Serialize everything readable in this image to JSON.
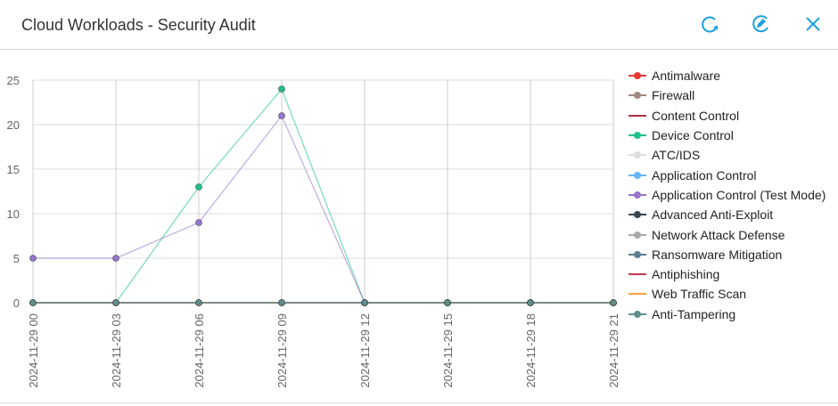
{
  "header": {
    "title": "Cloud Workloads - Security Audit",
    "icons": [
      "refresh-icon",
      "edit-icon",
      "close-icon"
    ],
    "accent": "#1a9fe0"
  },
  "chart_data": {
    "type": "line",
    "x": [
      "2024-11-29 00",
      "2024-11-29 03",
      "2024-11-29 06",
      "2024-11-29 09",
      "2024-11-29 12",
      "2024-11-29 15",
      "2024-11-29 18",
      "2024-11-29 21"
    ],
    "yticks": [
      0,
      5,
      10,
      15,
      20,
      25
    ],
    "ylim": [
      0,
      25
    ],
    "grid": true,
    "legend_position": "right",
    "series": [
      {
        "name": "Antimalware",
        "color": "#e53935",
        "marker": true,
        "values": [
          0,
          0,
          0,
          0,
          0,
          0,
          0,
          0
        ]
      },
      {
        "name": "Firewall",
        "color": "#a1887f",
        "marker": true,
        "values": [
          0,
          0,
          0,
          0,
          0,
          0,
          0,
          0
        ]
      },
      {
        "name": "Content Control",
        "color": "#b0303e",
        "marker": false,
        "values": [
          0,
          0,
          0,
          0,
          0,
          0,
          0,
          0
        ]
      },
      {
        "name": "Device Control",
        "color": "#1cc28a",
        "marker": true,
        "values": [
          0,
          0,
          13,
          24,
          0,
          0,
          0,
          0
        ]
      },
      {
        "name": "ATC/IDS",
        "color": "#dddddd",
        "marker": true,
        "values": [
          0,
          0,
          0,
          0,
          0,
          0,
          0,
          0
        ]
      },
      {
        "name": "Application Control",
        "color": "#64b5f6",
        "marker": true,
        "values": [
          0,
          0,
          0,
          0,
          0,
          0,
          0,
          0
        ]
      },
      {
        "name": "Application Control (Test Mode)",
        "color": "#9575cd",
        "marker": true,
        "values": [
          5,
          5,
          9,
          21,
          0,
          0,
          0,
          0
        ]
      },
      {
        "name": "Advanced Anti-Exploit",
        "color": "#37474f",
        "marker": true,
        "values": [
          0,
          0,
          0,
          0,
          0,
          0,
          0,
          0
        ]
      },
      {
        "name": "Network Attack Defense",
        "color": "#aaaaaa",
        "marker": true,
        "values": [
          0,
          0,
          0,
          0,
          0,
          0,
          0,
          0
        ]
      },
      {
        "name": "Ransomware Mitigation",
        "color": "#607d8b",
        "marker": true,
        "values": [
          0,
          0,
          0,
          0,
          0,
          0,
          0,
          0
        ]
      },
      {
        "name": "Antiphishing",
        "color": "#c0394b",
        "marker": false,
        "values": [
          0,
          0,
          0,
          0,
          0,
          0,
          0,
          0
        ]
      },
      {
        "name": "Web Traffic Scan",
        "color": "#ff9f40",
        "marker": false,
        "values": [
          0,
          0,
          0,
          0,
          0,
          0,
          0,
          0
        ]
      },
      {
        "name": "Anti-Tampering",
        "color": "#5f8f8a",
        "marker": true,
        "values": [
          0,
          0,
          0,
          0,
          0,
          0,
          0,
          0
        ]
      }
    ]
  }
}
